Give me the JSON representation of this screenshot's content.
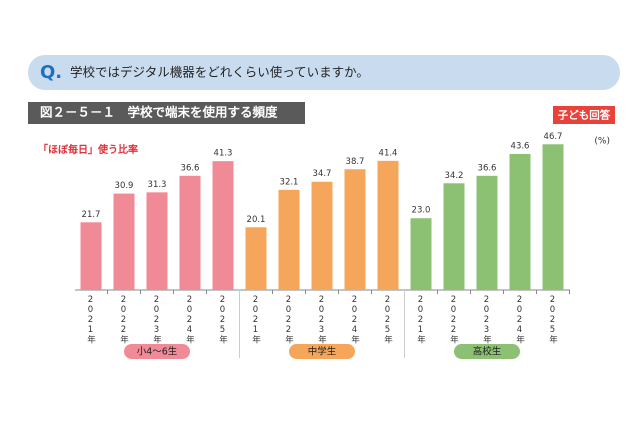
{
  "question": {
    "mark": "Q.",
    "text": "学校ではデジタル機器をどれくらい使っていますか。"
  },
  "chart_data": {
    "type": "bar",
    "title": "図２－５－１　学校で端末を使用する頻度",
    "badge": "子ども回答",
    "y_label": "「ほぼ毎日」使う比率",
    "unit": "(%)",
    "ylim": [
      0,
      50
    ],
    "groups": [
      {
        "name": "小4～6生",
        "color": "#f08a96",
        "categories": [
          "2021年",
          "2022年",
          "2023年",
          "2024年",
          "2025年"
        ],
        "values": [
          21.7,
          30.9,
          31.3,
          36.6,
          41.3
        ]
      },
      {
        "name": "中学生",
        "color": "#f5a65a",
        "categories": [
          "2021年",
          "2022年",
          "2023年",
          "2024年",
          "2025年"
        ],
        "values": [
          20.1,
          32.1,
          34.7,
          38.7,
          41.4
        ]
      },
      {
        "name": "高校生",
        "color": "#8cc072",
        "categories": [
          "2021年",
          "2022年",
          "2023年",
          "2024年",
          "2025年"
        ],
        "values": [
          23.0,
          34.2,
          36.6,
          43.6,
          46.7
        ],
        "value_labels": [
          "23.0",
          "34.2",
          "36.6",
          "43.6",
          "46.7"
        ]
      }
    ]
  }
}
